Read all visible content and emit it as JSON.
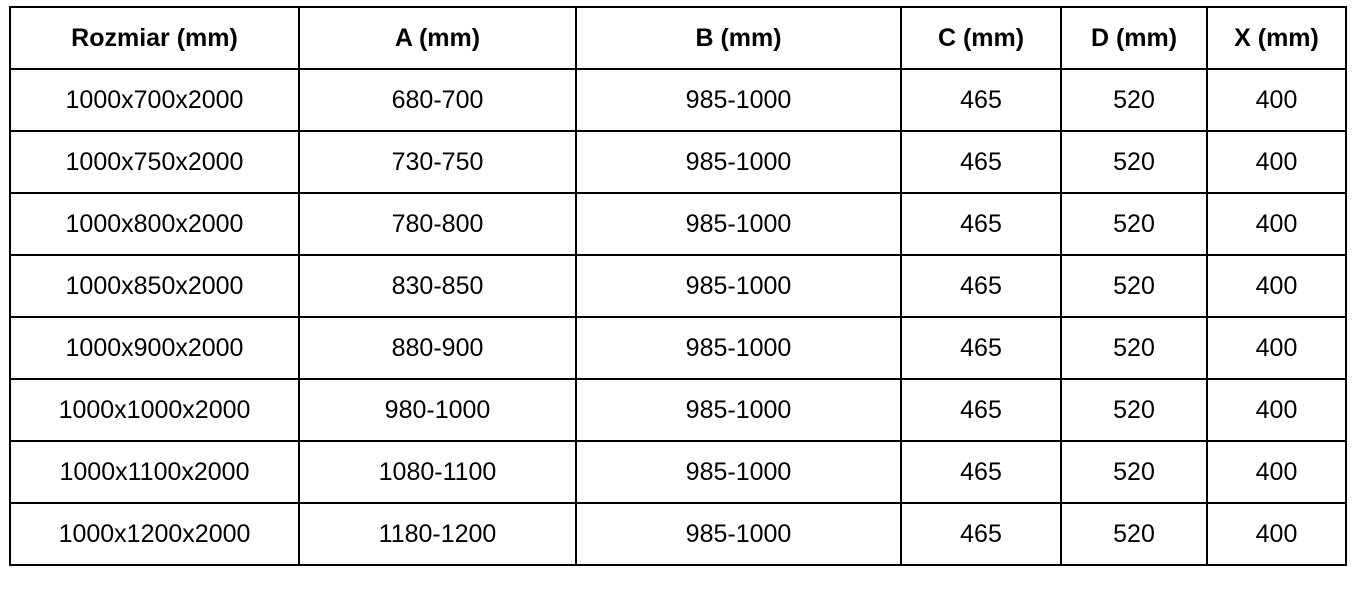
{
  "headers": [
    "Rozmiar (mm)",
    "A (mm)",
    "B (mm)",
    "C (mm)",
    "D (mm)",
    "X (mm)"
  ],
  "rows": [
    [
      "1000x700x2000",
      "680-700",
      "985-1000",
      "465",
      "520",
      "400"
    ],
    [
      "1000x750x2000",
      "730-750",
      "985-1000",
      "465",
      "520",
      "400"
    ],
    [
      "1000x800x2000",
      "780-800",
      "985-1000",
      "465",
      "520",
      "400"
    ],
    [
      "1000x850x2000",
      "830-850",
      "985-1000",
      "465",
      "520",
      "400"
    ],
    [
      "1000x900x2000",
      "880-900",
      "985-1000",
      "465",
      "520",
      "400"
    ],
    [
      "1000x1000x2000",
      "980-1000",
      "985-1000",
      "465",
      "520",
      "400"
    ],
    [
      "1000x1100x2000",
      "1080-1100",
      "985-1000",
      "465",
      "520",
      "400"
    ],
    [
      "1000x1200x2000",
      "1180-1200",
      "985-1000",
      "465",
      "520",
      "400"
    ]
  ]
}
